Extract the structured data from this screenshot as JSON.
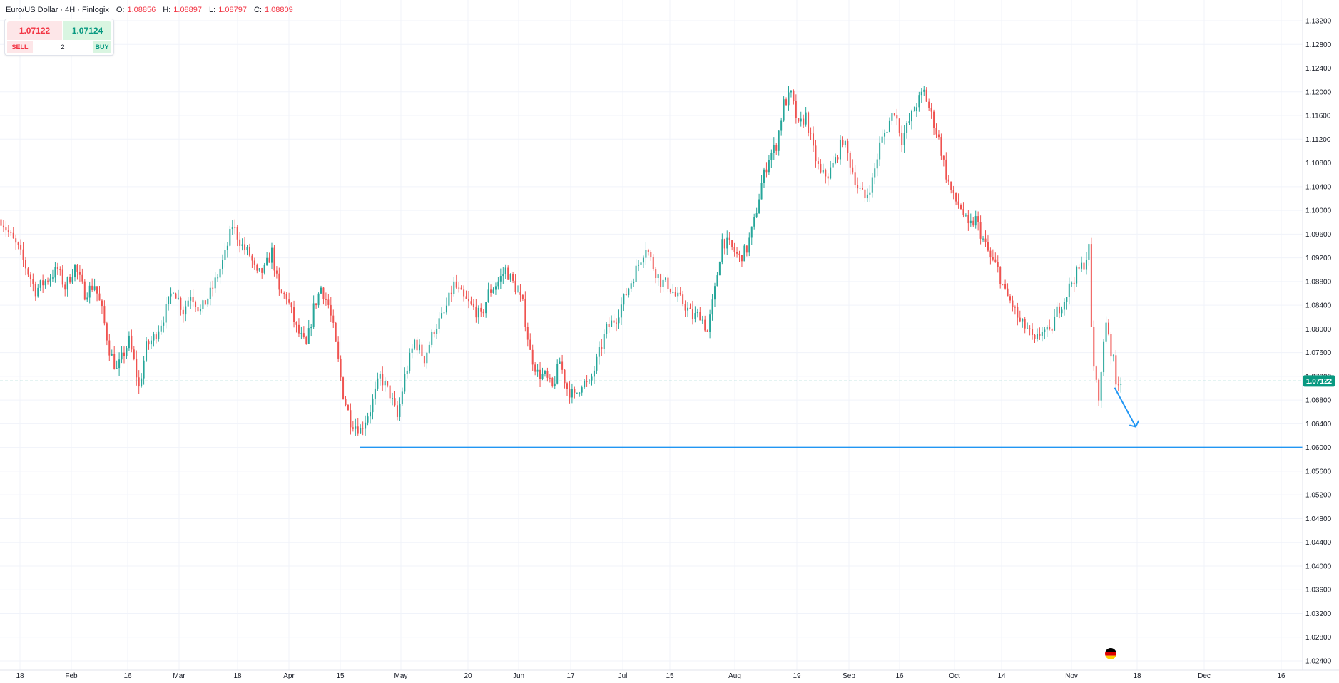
{
  "legend": {
    "symbol": "Euro/US Dollar · 4H · Finlogix",
    "open_label": "O:",
    "open": "1.08856",
    "high_label": "H:",
    "high": "1.08897",
    "low_label": "L:",
    "low": "1.08797",
    "close_label": "C:",
    "close": "1.08809"
  },
  "trade_panel": {
    "sell_price": "1.07122",
    "buy_price": "1.07124",
    "sell_label": "SELL",
    "buy_label": "BUY",
    "quantity": "2"
  },
  "colors": {
    "up": "#26a69a",
    "down": "#ef5350",
    "price_line": "#26a69a",
    "support_line": "#2196f3",
    "arrow": "#2196f3",
    "grid": "#f0f3fa",
    "price_badge": "#089981"
  },
  "current_price_label": "1.07122",
  "icons": {
    "event_flag": "germany-flag-icon"
  },
  "chart_data": {
    "type": "candlestick",
    "title": "Euro/US Dollar · 4H · Finlogix",
    "timeframe": "4H",
    "ylim": [
      1.0224,
      1.1338
    ],
    "y_ticks": [
      "1.13200",
      "1.12800",
      "1.12400",
      "1.12000",
      "1.11600",
      "1.11200",
      "1.10800",
      "1.10400",
      "1.10000",
      "1.09600",
      "1.09200",
      "1.08800",
      "1.08400",
      "1.08000",
      "1.07600",
      "1.07200",
      "1.06800",
      "1.06400",
      "1.06000",
      "1.05600",
      "1.05200",
      "1.04800",
      "1.04400",
      "1.04000",
      "1.03600",
      "1.03200",
      "1.02800",
      "1.02400"
    ],
    "x_ticks": [
      "18",
      "Feb",
      "16",
      "Mar",
      "18",
      "Apr",
      "15",
      "May",
      "20",
      "Jun",
      "17",
      "Jul",
      "15",
      "Aug",
      "19",
      "Sep",
      "16",
      "Oct",
      "14",
      "Nov",
      "18",
      "Dec",
      "16"
    ],
    "price_path": [
      [
        0,
        1.0985
      ],
      [
        4,
        1.0955
      ],
      [
        7,
        1.0935
      ],
      [
        10,
        1.0905
      ],
      [
        14,
        1.0865
      ],
      [
        19,
        1.0885
      ],
      [
        23,
        1.09
      ],
      [
        26,
        1.087
      ],
      [
        30,
        1.0905
      ],
      [
        34,
        1.086
      ],
      [
        38,
        1.0875
      ],
      [
        41,
        1.083
      ],
      [
        44,
        1.0765
      ],
      [
        47,
        1.073
      ],
      [
        49,
        1.075
      ],
      [
        52,
        1.078
      ],
      [
        54,
        1.0745
      ],
      [
        56,
        1.07
      ],
      [
        59,
        1.077
      ],
      [
        62,
        1.0785
      ],
      [
        66,
        1.082
      ],
      [
        70,
        1.087
      ],
      [
        74,
        1.083
      ],
      [
        77,
        1.086
      ],
      [
        81,
        1.083
      ],
      [
        85,
        1.086
      ],
      [
        88,
        1.089
      ],
      [
        91,
        1.0925
      ],
      [
        94,
        1.0975
      ],
      [
        98,
        1.094
      ],
      [
        101,
        1.0925
      ],
      [
        104,
        1.089
      ],
      [
        107,
        1.09
      ],
      [
        110,
        1.093
      ],
      [
        113,
        1.086
      ],
      [
        116,
        1.0855
      ],
      [
        120,
        1.08
      ],
      [
        124,
        1.077
      ],
      [
        127,
        1.0835
      ],
      [
        130,
        1.087
      ],
      [
        133,
        1.084
      ],
      [
        135,
        1.08
      ],
      [
        139,
        1.069
      ],
      [
        142,
        1.0645
      ],
      [
        146,
        1.063
      ],
      [
        150,
        1.0665
      ],
      [
        154,
        1.072
      ],
      [
        158,
        1.069
      ],
      [
        161,
        1.065
      ],
      [
        164,
        1.072
      ],
      [
        168,
        1.078
      ],
      [
        172,
        1.075
      ],
      [
        176,
        1.08
      ],
      [
        180,
        1.0825
      ],
      [
        184,
        1.0875
      ],
      [
        188,
        1.085
      ],
      [
        192,
        1.0835
      ],
      [
        195,
        1.082
      ],
      [
        198,
        1.086
      ],
      [
        202,
        1.088
      ],
      [
        205,
        1.09
      ],
      [
        209,
        1.087
      ],
      [
        212,
        1.084
      ],
      [
        215,
        1.076
      ],
      [
        218,
        1.0725
      ],
      [
        221,
        1.072
      ],
      [
        224,
        1.07
      ],
      [
        227,
        1.0745
      ],
      [
        230,
        1.07
      ],
      [
        233,
        1.0685
      ],
      [
        236,
        1.071
      ],
      [
        239,
        1.0705
      ],
      [
        242,
        1.0745
      ],
      [
        246,
        1.08
      ],
      [
        250,
        1.082
      ],
      [
        254,
        1.086
      ],
      [
        258,
        1.09
      ],
      [
        262,
        1.094
      ],
      [
        265,
        1.0905
      ],
      [
        268,
        1.088
      ],
      [
        271,
        1.0875
      ],
      [
        274,
        1.0855
      ],
      [
        277,
        1.0845
      ],
      [
        281,
        1.082
      ],
      [
        284,
        1.0825
      ],
      [
        287,
        1.0795
      ],
      [
        290,
        1.0865
      ],
      [
        293,
        1.095
      ],
      [
        296,
        1.094
      ],
      [
        300,
        1.092
      ],
      [
        303,
        1.0935
      ],
      [
        306,
        1.098
      ],
      [
        309,
        1.1045
      ],
      [
        312,
        1.109
      ],
      [
        315,
        1.111
      ],
      [
        318,
        1.118
      ],
      [
        321,
        1.1195
      ],
      [
        324,
        1.114
      ],
      [
        327,
        1.116
      ],
      [
        330,
        1.11
      ],
      [
        333,
        1.106
      ],
      [
        336,
        1.106
      ],
      [
        339,
        1.1085
      ],
      [
        342,
        1.112
      ],
      [
        345,
        1.108
      ],
      [
        348,
        1.104
      ],
      [
        351,
        1.102
      ],
      [
        354,
        1.105
      ],
      [
        357,
        1.111
      ],
      [
        360,
        1.114
      ],
      [
        363,
        1.117
      ],
      [
        366,
        1.112
      ],
      [
        369,
        1.115
      ],
      [
        372,
        1.118
      ],
      [
        375,
        1.12
      ],
      [
        378,
        1.116
      ],
      [
        381,
        1.112
      ],
      [
        384,
        1.106
      ],
      [
        387,
        1.102
      ],
      [
        390,
        1.1005
      ],
      [
        393,
        1.097
      ],
      [
        396,
        1.0985
      ],
      [
        399,
        1.095
      ],
      [
        402,
        1.092
      ],
      [
        405,
        1.09
      ],
      [
        408,
        1.086
      ],
      [
        411,
        1.084
      ],
      [
        414,
        1.081
      ],
      [
        417,
        1.08
      ],
      [
        420,
        1.0775
      ],
      [
        423,
        1.08
      ],
      [
        426,
        1.079
      ],
      [
        429,
        1.083
      ],
      [
        432,
        1.085
      ],
      [
        435,
        1.088
      ],
      [
        438,
        1.09
      ],
      [
        440,
        1.091
      ],
      [
        442,
        1.0935
      ],
      [
        443,
        1.08
      ],
      [
        444,
        1.074
      ],
      [
        445,
        1.0705
      ],
      [
        446,
        1.069
      ],
      [
        447,
        1.072
      ],
      [
        448,
        1.078
      ],
      [
        449,
        1.0815
      ],
      [
        450,
        1.0795
      ],
      [
        451,
        1.076
      ],
      [
        452,
        1.0745
      ],
      [
        453,
        1.0705
      ],
      [
        454,
        1.0715
      ],
      [
        455,
        1.0712
      ]
    ],
    "current_price": 1.07122,
    "support_level": 1.06,
    "support_start_index": 146,
    "arrow_from": [
      1.071,
      1.07
    ],
    "arrow_to": [
      1.0635,
      1.0635
    ]
  }
}
